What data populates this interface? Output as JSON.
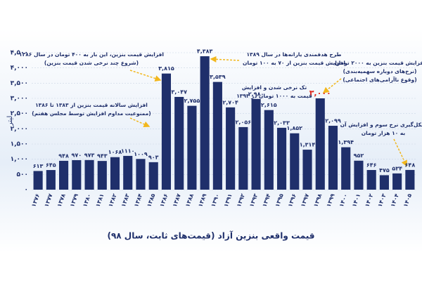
{
  "chart_data": {
    "type": "bar",
    "title": "قیمت واقعی بنزین آزاد (قیمت‌های ثابت، سال ۹۸)",
    "y_label": "لیتر",
    "categories": [
      "۱۳۷۶",
      "۱۳۷۷",
      "۱۳۷۸",
      "۱۳۷۹",
      "۱۳۸۰",
      "۱۳۸۱",
      "۱۳۸۲",
      "۱۳۸۳",
      "۱۳۸۴",
      "۱۳۸۵",
      "۱۳۸۶",
      "۱۳۸۷",
      "۱۳۸۸",
      "۱۳۸۹",
      "۱۳۹۰",
      "۱۳۹۱",
      "۱۳۹۲",
      "۱۳۹۳",
      "۱۳۹۴",
      "۱۳۹۵",
      "۱۳۹۶",
      "۱۳۹۷",
      "۱۳۹۸",
      "۱۳۹۹",
      "۱۴۰۰",
      "۱۴۰۱",
      "۱۴۰۲",
      "۱۴۰۳",
      "۱۴۰۴",
      "۱۴۰۵"
    ],
    "values": [
      613,
      645,
      948,
      970,
      973,
      943,
      1068,
      1110,
      1009,
      903,
      3815,
      3047,
      2755,
      4383,
      3539,
      2704,
      2056,
      2980,
      2615,
      2033,
      1852,
      1314,
      3000,
      2099,
      1394,
      952,
      646,
      475,
      534,
      648
    ],
    "value_labels": [
      "۶۱۳",
      "۶۴۵",
      "۹۴۸",
      "۹۷۰",
      "۹۷۳",
      "۹۴۳",
      "۱۰۶۸",
      "۱۱۱۰",
      "۱۰۰۹",
      "۹۰۳",
      "۳,۸۱۵",
      "۳,۰۴۷",
      "۲,۷۵۵",
      "۴,۳۸۳",
      "۳,۵۳۹",
      "۲,۷۰۴",
      "۲,۰۵۶",
      "۲,۹۸۰",
      "۲,۶۱۵",
      "۲,۰۳۳",
      "۱,۸۵۲",
      "۱,۳۱۴",
      "۳,۰۰۰",
      "۲,۰۹۹",
      "۱,۳۹۴",
      "۹۵۲",
      "۶۴۶",
      "۴۷۵",
      "۵۳۴",
      "۶۴۸"
    ],
    "value_label_colors": [
      "#1f2f6b",
      "#1f2f6b",
      "#1f2f6b",
      "#1f2f6b",
      "#1f2f6b",
      "#1f2f6b",
      "#1f2f6b",
      "#1f2f6b",
      "#1f2f6b",
      "#1f2f6b",
      "#1f2f6b",
      "#1f2f6b",
      "#1f2f6b",
      "#1f2f6b",
      "#1f2f6b",
      "#1f2f6b",
      "#1f2f6b",
      "#1f2f6b",
      "#1f2f6b",
      "#1f2f6b",
      "#1f2f6b",
      "#1f2f6b",
      "#e0281e",
      "#1f2f6b",
      "#1f2f6b",
      "#1f2f6b",
      "#1f2f6b",
      "#1f2f6b",
      "#1f2f6b",
      "#1f2f6b"
    ],
    "color": "#1f2f6b",
    "ylim": [
      0,
      4500
    ],
    "yticks": [
      {
        "value": 0,
        "label": "۰"
      },
      {
        "value": 500,
        "label": "۵۰۰"
      },
      {
        "value": 1000,
        "label": "۱,۰۰۰"
      },
      {
        "value": 1500,
        "label": "۱,۵۰۰"
      },
      {
        "value": 2000,
        "label": "۲,۰۰۰"
      },
      {
        "value": 2500,
        "label": "۲,۵۰۰"
      },
      {
        "value": 3000,
        "label": "۳,۰۰۰"
      },
      {
        "value": 3500,
        "label": "۳,۵۰۰"
      },
      {
        "value": 4000,
        "label": "۴,۰۰۰"
      },
      {
        "value": 4500,
        "label": "۴,۵۰۰"
      }
    ],
    "grid": true,
    "annotations": [
      [
        "افزایش قیمت بنزین، این بار به ۴۰۰ تومان در سال ۱۳۸۶",
        "(شروع چند نرخی شدن قیمت بنزین)"
      ],
      [
        "افزایش سالانه قیمت بنزین از ۱۳۸۳ تا ۱۳۸۶",
        "(ممنوعیت مداوم افزایش توسط مجلس هفتم)"
      ],
      [
        "طرح هدفمندی یارانه‌ها در سال ۱۳۸۹",
        "افزایش قیمت بنزین از ۷۰ به ۱۰۰ تومان"
      ],
      [
        "تک نرخی شدن و افزایش",
        "قیمت به ۱۰۰۰ تومان در ۱۳۹۳"
      ],
      [
        "افزایش قیمت بنزین به ۲۰۰۰ تومان",
        "(نرخ‌های دوباره سهمیه‌بندی)",
        "(وقوع ناآرامی‌های اجتماعی)"
      ],
      [
        "شکل‌گیری نرخ سوم و افزایش آن",
        "به ۱۰ هزار تومان"
      ]
    ]
  }
}
